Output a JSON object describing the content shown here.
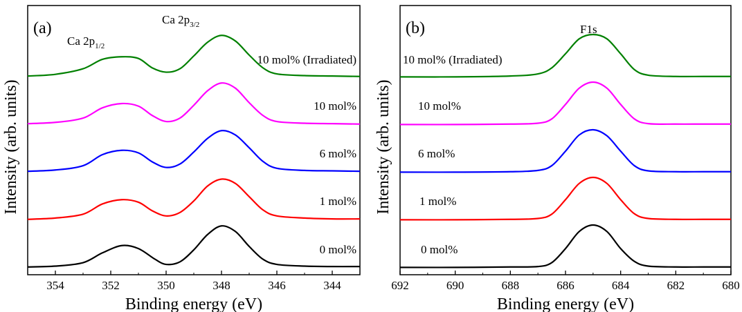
{
  "chart_data": [
    {
      "type": "line",
      "panel": "(a)",
      "xlabel": "Binding energy (eV)",
      "ylabel": "Intensity (arb. units)",
      "xlim": [
        355,
        343
      ],
      "x_reversed": true,
      "y_ticks": false,
      "grid": false,
      "xticks": [
        354,
        352,
        350,
        348,
        346,
        344
      ],
      "peak_labels": [
        {
          "main": "Ca 2p",
          "sub": "1/2",
          "x": 351.6
        },
        {
          "main": "Ca 2p",
          "sub": "3/2",
          "x": 347.9
        }
      ],
      "series": [
        {
          "name": "0 mol%",
          "color": "#000000",
          "offset": 0,
          "points": [
            [
              355,
              0.02
            ],
            [
              354,
              0.04
            ],
            [
              353,
              0.12
            ],
            [
              352.3,
              0.35
            ],
            [
              351.6,
              0.52
            ],
            [
              351,
              0.45
            ],
            [
              350.4,
              0.2
            ],
            [
              350,
              0.08
            ],
            [
              349.5,
              0.14
            ],
            [
              349,
              0.42
            ],
            [
              348.5,
              0.78
            ],
            [
              348,
              0.98
            ],
            [
              347.5,
              0.85
            ],
            [
              347,
              0.5
            ],
            [
              346.5,
              0.2
            ],
            [
              346,
              0.08
            ],
            [
              345,
              0.04
            ],
            [
              344,
              0.03
            ],
            [
              343,
              0.03
            ]
          ]
        },
        {
          "name": "1 mol%",
          "color": "#ff0000",
          "offset": 1,
          "points": [
            [
              355,
              0.02
            ],
            [
              354,
              0.05
            ],
            [
              353,
              0.14
            ],
            [
              352.3,
              0.38
            ],
            [
              351.6,
              0.48
            ],
            [
              351,
              0.42
            ],
            [
              350.5,
              0.22
            ],
            [
              350,
              0.1
            ],
            [
              349.5,
              0.18
            ],
            [
              349,
              0.45
            ],
            [
              348.5,
              0.8
            ],
            [
              348,
              0.96
            ],
            [
              347.5,
              0.86
            ],
            [
              347,
              0.55
            ],
            [
              346.5,
              0.24
            ],
            [
              346,
              0.1
            ],
            [
              345,
              0.05
            ],
            [
              344,
              0.03
            ],
            [
              343,
              0.03
            ]
          ]
        },
        {
          "name": "6 mol%",
          "color": "#0000ff",
          "offset": 2,
          "points": [
            [
              355,
              0.03
            ],
            [
              354,
              0.06
            ],
            [
              353,
              0.16
            ],
            [
              352.3,
              0.42
            ],
            [
              351.6,
              0.52
            ],
            [
              351,
              0.46
            ],
            [
              350.5,
              0.25
            ],
            [
              350,
              0.12
            ],
            [
              349.5,
              0.2
            ],
            [
              349,
              0.48
            ],
            [
              348.5,
              0.8
            ],
            [
              348,
              0.98
            ],
            [
              347.5,
              0.88
            ],
            [
              347,
              0.58
            ],
            [
              346.5,
              0.26
            ],
            [
              346,
              0.1
            ],
            [
              345,
              0.05
            ],
            [
              344,
              0.04
            ],
            [
              343,
              0.03
            ]
          ]
        },
        {
          "name": "10 mol%",
          "color": "#ff00ff",
          "offset": 3,
          "points": [
            [
              355,
              0.03
            ],
            [
              354,
              0.06
            ],
            [
              353,
              0.16
            ],
            [
              352.3,
              0.4
            ],
            [
              351.6,
              0.5
            ],
            [
              351,
              0.44
            ],
            [
              350.5,
              0.22
            ],
            [
              350,
              0.08
            ],
            [
              349.5,
              0.16
            ],
            [
              349,
              0.46
            ],
            [
              348.5,
              0.8
            ],
            [
              348,
              0.98
            ],
            [
              347.5,
              0.86
            ],
            [
              347,
              0.52
            ],
            [
              346.5,
              0.22
            ],
            [
              346,
              0.08
            ],
            [
              345,
              0.04
            ],
            [
              344,
              0.03
            ],
            [
              343,
              0.02
            ]
          ]
        },
        {
          "name": "10 mol% (Irradiated)",
          "color": "#008000",
          "offset": 4,
          "points": [
            [
              355,
              0.03
            ],
            [
              354,
              0.07
            ],
            [
              353,
              0.2
            ],
            [
              352.3,
              0.42
            ],
            [
              351.6,
              0.48
            ],
            [
              351,
              0.44
            ],
            [
              350.5,
              0.22
            ],
            [
              350,
              0.12
            ],
            [
              349.5,
              0.2
            ],
            [
              349,
              0.5
            ],
            [
              348.5,
              0.82
            ],
            [
              348,
              0.98
            ],
            [
              347.5,
              0.85
            ],
            [
              347,
              0.52
            ],
            [
              346.5,
              0.22
            ],
            [
              346,
              0.08
            ],
            [
              345,
              0.04
            ],
            [
              344,
              0.03
            ],
            [
              343,
              0.02
            ]
          ]
        }
      ]
    },
    {
      "type": "line",
      "panel": "(b)",
      "xlabel": "Binding energy (eV)",
      "ylabel": "Intensity (arb. units)",
      "xlim": [
        692,
        680
      ],
      "x_reversed": true,
      "y_ticks": false,
      "grid": false,
      "xticks": [
        692,
        690,
        688,
        686,
        684,
        682,
        680
      ],
      "peak_labels": [
        {
          "main": "F1s",
          "sub": "",
          "x": 685
        }
      ],
      "series": [
        {
          "name": "0 mol%",
          "color": "#000000",
          "offset": 0,
          "points": [
            [
              692,
              0.01
            ],
            [
              690,
              0.01
            ],
            [
              688,
              0.02
            ],
            [
              687,
              0.03
            ],
            [
              686.5,
              0.12
            ],
            [
              686,
              0.45
            ],
            [
              685.5,
              0.85
            ],
            [
              685,
              1.0
            ],
            [
              684.5,
              0.85
            ],
            [
              684,
              0.45
            ],
            [
              683.5,
              0.15
            ],
            [
              683,
              0.04
            ],
            [
              682,
              0.02
            ],
            [
              681,
              0.02
            ],
            [
              680,
              0.02
            ]
          ]
        },
        {
          "name": "1 mol%",
          "color": "#ff0000",
          "offset": 1,
          "points": [
            [
              692,
              0.01
            ],
            [
              690,
              0.01
            ],
            [
              688,
              0.02
            ],
            [
              687,
              0.04
            ],
            [
              686.5,
              0.14
            ],
            [
              686,
              0.48
            ],
            [
              685.5,
              0.86
            ],
            [
              685,
              1.0
            ],
            [
              684.5,
              0.86
            ],
            [
              684,
              0.48
            ],
            [
              683.5,
              0.15
            ],
            [
              683,
              0.04
            ],
            [
              682,
              0.02
            ],
            [
              681,
              0.02
            ],
            [
              680,
              0.02
            ]
          ]
        },
        {
          "name": "6 mol%",
          "color": "#0000ff",
          "offset": 2,
          "points": [
            [
              692,
              0.01
            ],
            [
              690,
              0.01
            ],
            [
              688,
              0.02
            ],
            [
              687,
              0.05
            ],
            [
              686.5,
              0.16
            ],
            [
              686,
              0.5
            ],
            [
              685.5,
              0.88
            ],
            [
              685,
              1.0
            ],
            [
              684.5,
              0.86
            ],
            [
              684,
              0.5
            ],
            [
              683.5,
              0.16
            ],
            [
              683,
              0.04
            ],
            [
              682,
              0.02
            ],
            [
              681,
              0.02
            ],
            [
              680,
              0.02
            ]
          ]
        },
        {
          "name": "10 mol%",
          "color": "#ff00ff",
          "offset": 3,
          "points": [
            [
              692,
              0.01
            ],
            [
              690,
              0.01
            ],
            [
              688,
              0.02
            ],
            [
              687,
              0.04
            ],
            [
              686.5,
              0.14
            ],
            [
              686,
              0.48
            ],
            [
              685.5,
              0.86
            ],
            [
              685,
              1.0
            ],
            [
              684.5,
              0.86
            ],
            [
              684,
              0.48
            ],
            [
              683.5,
              0.14
            ],
            [
              683,
              0.03
            ],
            [
              682,
              0.02
            ],
            [
              681,
              0.02
            ],
            [
              680,
              0.02
            ]
          ]
        },
        {
          "name": "10 mol% (Irradiated)",
          "color": "#008000",
          "offset": 4,
          "points": [
            [
              692,
              0.01
            ],
            [
              690,
              0.01
            ],
            [
              688,
              0.03
            ],
            [
              687,
              0.08
            ],
            [
              686.5,
              0.22
            ],
            [
              686,
              0.55
            ],
            [
              685.5,
              0.9
            ],
            [
              685,
              1.0
            ],
            [
              684.5,
              0.9
            ],
            [
              684,
              0.55
            ],
            [
              683.5,
              0.18
            ],
            [
              683,
              0.05
            ],
            [
              682,
              0.02
            ],
            [
              681,
              0.02
            ],
            [
              680,
              0.02
            ]
          ]
        }
      ]
    }
  ]
}
